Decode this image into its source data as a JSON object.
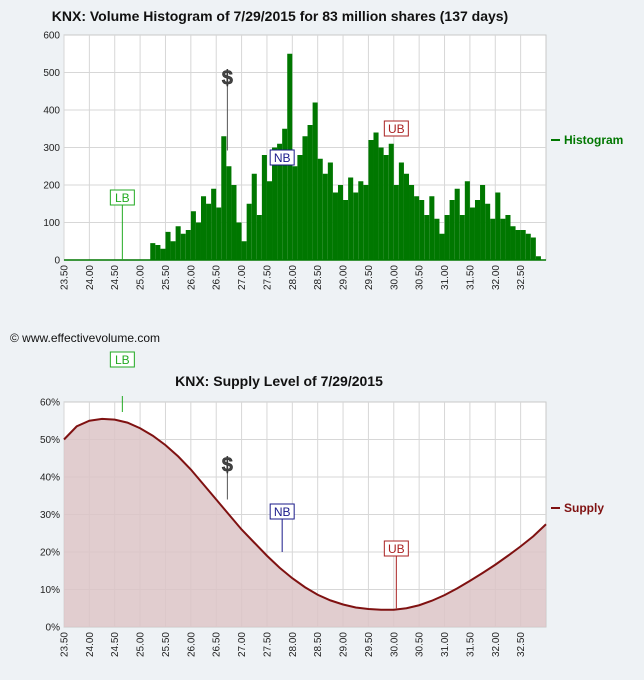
{
  "copyright": "© www.effectivevolume.com",
  "colors": {
    "histogram": "#007700",
    "supply": "#7f1111",
    "supply_fill": "#dcc4c7",
    "lb": "#22aa22",
    "nb": "#1a1a8a",
    "ub": "#aa2222",
    "grid": "#d7d7d7"
  },
  "chart_data": [
    {
      "type": "bar",
      "title": "KNX: Volume Histogram of 7/29/2015 for 83 million shares (137 days)",
      "legend": "Histogram",
      "legend_placement": "right",
      "grid": true,
      "xlim": [
        23.5,
        33.0
      ],
      "ylim": [
        0,
        600
      ],
      "x_ticks": [
        "23.50",
        "24.00",
        "24.50",
        "25.00",
        "25.50",
        "26.00",
        "26.50",
        "27.00",
        "27.50",
        "28.00",
        "28.50",
        "29.00",
        "29.50",
        "30.00",
        "30.50",
        "31.00",
        "31.50",
        "32.00",
        "32.50"
      ],
      "y_ticks": [
        "0",
        "100",
        "200",
        "300",
        "400",
        "500",
        "600"
      ],
      "x": [
        25.25,
        25.35,
        25.45,
        25.55,
        25.65,
        25.75,
        25.85,
        25.95,
        26.05,
        26.15,
        26.25,
        26.35,
        26.45,
        26.55,
        26.65,
        26.75,
        26.85,
        26.95,
        27.05,
        27.15,
        27.25,
        27.35,
        27.45,
        27.55,
        27.65,
        27.75,
        27.85,
        27.95,
        28.05,
        28.15,
        28.25,
        28.35,
        28.45,
        28.55,
        28.65,
        28.75,
        28.85,
        28.95,
        29.05,
        29.15,
        29.25,
        29.35,
        29.45,
        29.55,
        29.65,
        29.75,
        29.85,
        29.95,
        30.05,
        30.15,
        30.25,
        30.35,
        30.45,
        30.55,
        30.65,
        30.75,
        30.85,
        30.95,
        31.05,
        31.15,
        31.25,
        31.35,
        31.45,
        31.55,
        31.65,
        31.75,
        31.85,
        31.95,
        32.05,
        32.15,
        32.25,
        32.35,
        32.45,
        32.55,
        32.65,
        32.75,
        32.85
      ],
      "values": [
        45,
        40,
        30,
        75,
        50,
        90,
        70,
        80,
        130,
        100,
        170,
        150,
        190,
        140,
        330,
        250,
        200,
        100,
        50,
        150,
        230,
        120,
        280,
        210,
        300,
        310,
        350,
        550,
        250,
        280,
        330,
        360,
        420,
        270,
        230,
        260,
        180,
        200,
        160,
        220,
        180,
        210,
        200,
        320,
        340,
        300,
        280,
        310,
        200,
        260,
        230,
        200,
        170,
        160,
        120,
        170,
        110,
        70,
        120,
        160,
        190,
        120,
        210,
        140,
        160,
        200,
        150,
        110,
        180,
        110,
        120,
        90,
        80,
        80,
        70,
        60,
        10
      ],
      "markers": [
        {
          "label": "LB",
          "x": 24.65,
          "value": 0
        },
        {
          "label": "$",
          "x": 26.72,
          "value": 340
        },
        {
          "label": "NB",
          "x": 27.8,
          "value": 270
        },
        {
          "label": "UB",
          "x": 30.05,
          "value": 330
        }
      ]
    },
    {
      "type": "area",
      "title": "KNX: Supply Level of 7/29/2015",
      "legend": "Supply",
      "legend_placement": "right",
      "grid": true,
      "xlim": [
        23.5,
        33.0
      ],
      "ylim": [
        0,
        60
      ],
      "x_ticks": [
        "23.50",
        "24.00",
        "24.50",
        "25.00",
        "25.50",
        "26.00",
        "26.50",
        "27.00",
        "27.50",
        "28.00",
        "28.50",
        "29.00",
        "29.50",
        "30.00",
        "30.50",
        "31.00",
        "31.50",
        "32.00",
        "32.50"
      ],
      "y_ticks": [
        "0%",
        "10%",
        "20%",
        "30%",
        "40%",
        "50%",
        "60%"
      ],
      "x": [
        23.5,
        23.75,
        24.0,
        24.25,
        24.5,
        24.75,
        25.0,
        25.25,
        25.5,
        25.75,
        26.0,
        26.25,
        26.5,
        26.75,
        27.0,
        27.25,
        27.5,
        27.75,
        28.0,
        28.25,
        28.5,
        28.75,
        29.0,
        29.25,
        29.5,
        29.75,
        30.0,
        30.25,
        30.5,
        30.75,
        31.0,
        31.25,
        31.5,
        31.75,
        32.0,
        32.25,
        32.5,
        32.75,
        33.0
      ],
      "values": [
        50,
        53.5,
        55,
        55.5,
        55.3,
        54.5,
        53,
        51,
        48.5,
        45.5,
        42,
        38,
        34,
        30,
        26,
        22.5,
        19,
        15.8,
        13,
        10.6,
        8.6,
        7.1,
        6,
        5.2,
        4.8,
        4.6,
        4.6,
        5,
        5.8,
        7,
        8.5,
        10.3,
        12.3,
        14.4,
        16.6,
        19,
        21.5,
        24.2,
        27.4
      ],
      "markers": [
        {
          "label": "LB",
          "x": 24.65,
          "value": 60
        },
        {
          "label": "$",
          "x": 26.72,
          "value": 34
        },
        {
          "label": "NB",
          "x": 27.8,
          "value": 20
        },
        {
          "label": "UB",
          "x": 30.05,
          "value": 5
        }
      ]
    }
  ]
}
